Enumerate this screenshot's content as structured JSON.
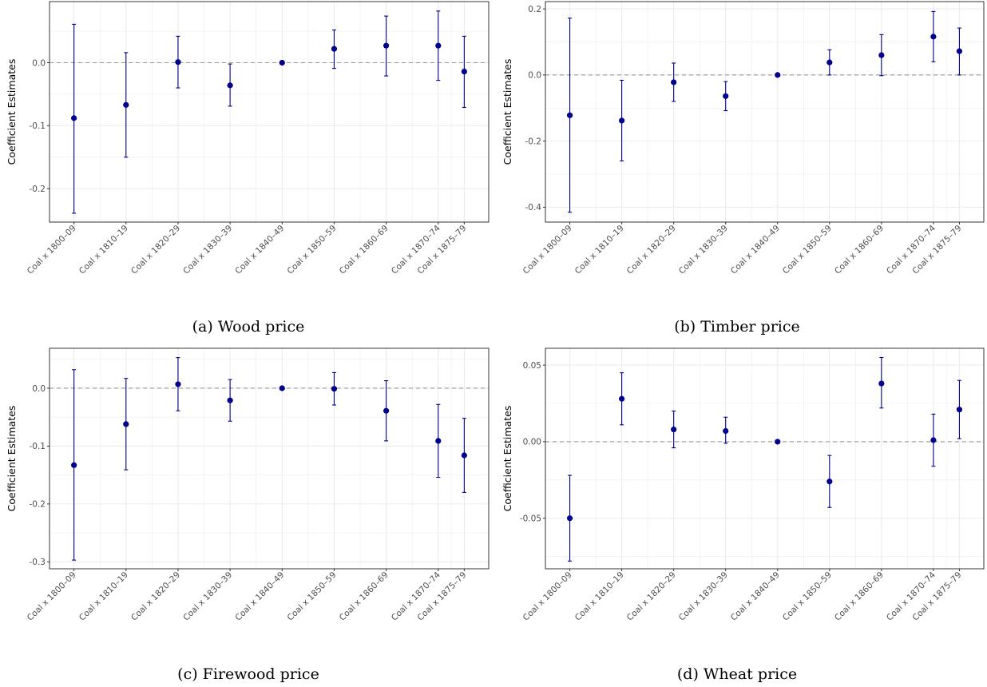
{
  "panel_caption_prefixes": [
    "(a)",
    "(b)",
    "(c)",
    "(d)"
  ],
  "colors": {
    "point": "#00008B",
    "zero_line": "#999999",
    "grid": "#ebebeb",
    "frame": "#333333"
  },
  "chart_data": [
    {
      "type": "scatter",
      "caption": "(a) Wood price",
      "ylabel": "Coefficient Estimates",
      "xlabel": "",
      "categories": [
        "Coal x 1800–09",
        "Coal x 1810–19",
        "Coal x 1820–29",
        "Coal x 1830–39",
        "Coal x 1840–49",
        "Coal x 1850–59",
        "Coal x 1860–69",
        "Coal x 1870–74",
        "Coal x 1875–79"
      ],
      "x_years": [
        1800,
        1810,
        1820,
        1830,
        1840,
        1850,
        1860,
        1870,
        1875
      ],
      "estimate": [
        -0.088,
        -0.067,
        0.001,
        -0.036,
        0.0,
        0.022,
        0.027,
        0.027,
        -0.014
      ],
      "ci_low": [
        -0.239,
        -0.15,
        -0.04,
        -0.069,
        0.0,
        -0.009,
        -0.021,
        -0.028,
        -0.071
      ],
      "ci_high": [
        0.061,
        0.016,
        0.042,
        -0.002,
        0.0,
        0.052,
        0.074,
        0.082,
        0.042
      ],
      "yticks": [
        -0.2,
        -0.1,
        0.0
      ],
      "ytick_labels": [
        "-0.2",
        "-0.1",
        "0.0"
      ],
      "ylim": [
        -0.253,
        0.097
      ],
      "zero_line": true,
      "grid": true
    },
    {
      "type": "scatter",
      "caption": "(b) Timber price",
      "ylabel": "Coefficient Estimates",
      "xlabel": "",
      "categories": [
        "Coal x 1800–09",
        "Coal x 1810–19",
        "Coal x 1820–29",
        "Coal x 1830–39",
        "Coal x 1840–49",
        "Coal x 1850–59",
        "Coal x 1860–69",
        "Coal x 1870–74",
        "Coal x 1875–79"
      ],
      "x_years": [
        1800,
        1810,
        1820,
        1830,
        1840,
        1850,
        1860,
        1870,
        1875
      ],
      "estimate": [
        -0.122,
        -0.138,
        -0.022,
        -0.064,
        0.0,
        0.038,
        0.06,
        0.116,
        0.072
      ],
      "ci_low": [
        -0.415,
        -0.26,
        -0.08,
        -0.108,
        0.0,
        0.0,
        -0.002,
        0.04,
        0.0
      ],
      "ci_high": [
        0.172,
        -0.016,
        0.036,
        -0.02,
        0.0,
        0.076,
        0.122,
        0.192,
        0.142
      ],
      "yticks": [
        -0.4,
        -0.2,
        0.0,
        0.2
      ],
      "ytick_labels": [
        "-0.4",
        "-0.2",
        "0.0",
        "0.2"
      ],
      "ylim": [
        -0.445,
        0.222
      ],
      "zero_line": true,
      "grid": true
    },
    {
      "type": "scatter",
      "caption": "(c) Firewood price",
      "ylabel": "Coefficient Estimates",
      "xlabel": "",
      "categories": [
        "Coal x 1800–09",
        "Coal x 1810–19",
        "Coal x 1820–29",
        "Coal x 1830–39",
        "Coal x 1840–49",
        "Coal x 1850–59",
        "Coal x 1860–69",
        "Coal x 1870–74",
        "Coal x 1875–79"
      ],
      "x_years": [
        1800,
        1810,
        1820,
        1830,
        1840,
        1850,
        1860,
        1870,
        1875
      ],
      "estimate": [
        -0.133,
        -0.062,
        0.007,
        -0.021,
        0.0,
        -0.001,
        -0.039,
        -0.091,
        -0.116
      ],
      "ci_low": [
        -0.297,
        -0.141,
        -0.039,
        -0.057,
        0.0,
        -0.029,
        -0.091,
        -0.154,
        -0.18
      ],
      "ci_high": [
        0.032,
        0.017,
        0.053,
        0.015,
        0.0,
        0.027,
        0.013,
        -0.028,
        -0.052
      ],
      "yticks": [
        -0.3,
        -0.2,
        -0.1,
        0.0
      ],
      "ytick_labels": [
        "-0.3",
        "-0.2",
        "-0.1",
        "0.0"
      ],
      "ylim": [
        -0.312,
        0.069
      ],
      "zero_line": true,
      "grid": true
    },
    {
      "type": "scatter",
      "caption": "(d) Wheat price",
      "ylabel": "Coefficient Estimates",
      "xlabel": "",
      "categories": [
        "Coal x 1800–09",
        "Coal x 1810–19",
        "Coal x 1820–29",
        "Coal x 1830–39",
        "Coal x 1840–49",
        "Coal x 1850–59",
        "Coal x 1860–69",
        "Coal x 1870–74",
        "Coal x 1875–79"
      ],
      "x_years": [
        1800,
        1810,
        1820,
        1830,
        1840,
        1850,
        1860,
        1870,
        1875
      ],
      "estimate": [
        -0.05,
        0.028,
        0.008,
        0.007,
        0.0,
        -0.026,
        0.038,
        0.001,
        0.021
      ],
      "ci_low": [
        -0.078,
        0.011,
        -0.004,
        -0.001,
        0.0,
        -0.043,
        0.022,
        -0.016,
        0.002
      ],
      "ci_high": [
        -0.022,
        0.045,
        0.02,
        0.016,
        0.0,
        -0.009,
        0.055,
        0.018,
        0.04
      ],
      "yticks": [
        -0.05,
        0.0,
        0.05
      ],
      "ytick_labels": [
        "-0.05",
        "0.00",
        "0.05"
      ],
      "ylim": [
        -0.083,
        0.061
      ],
      "zero_line": true,
      "grid": true
    }
  ]
}
